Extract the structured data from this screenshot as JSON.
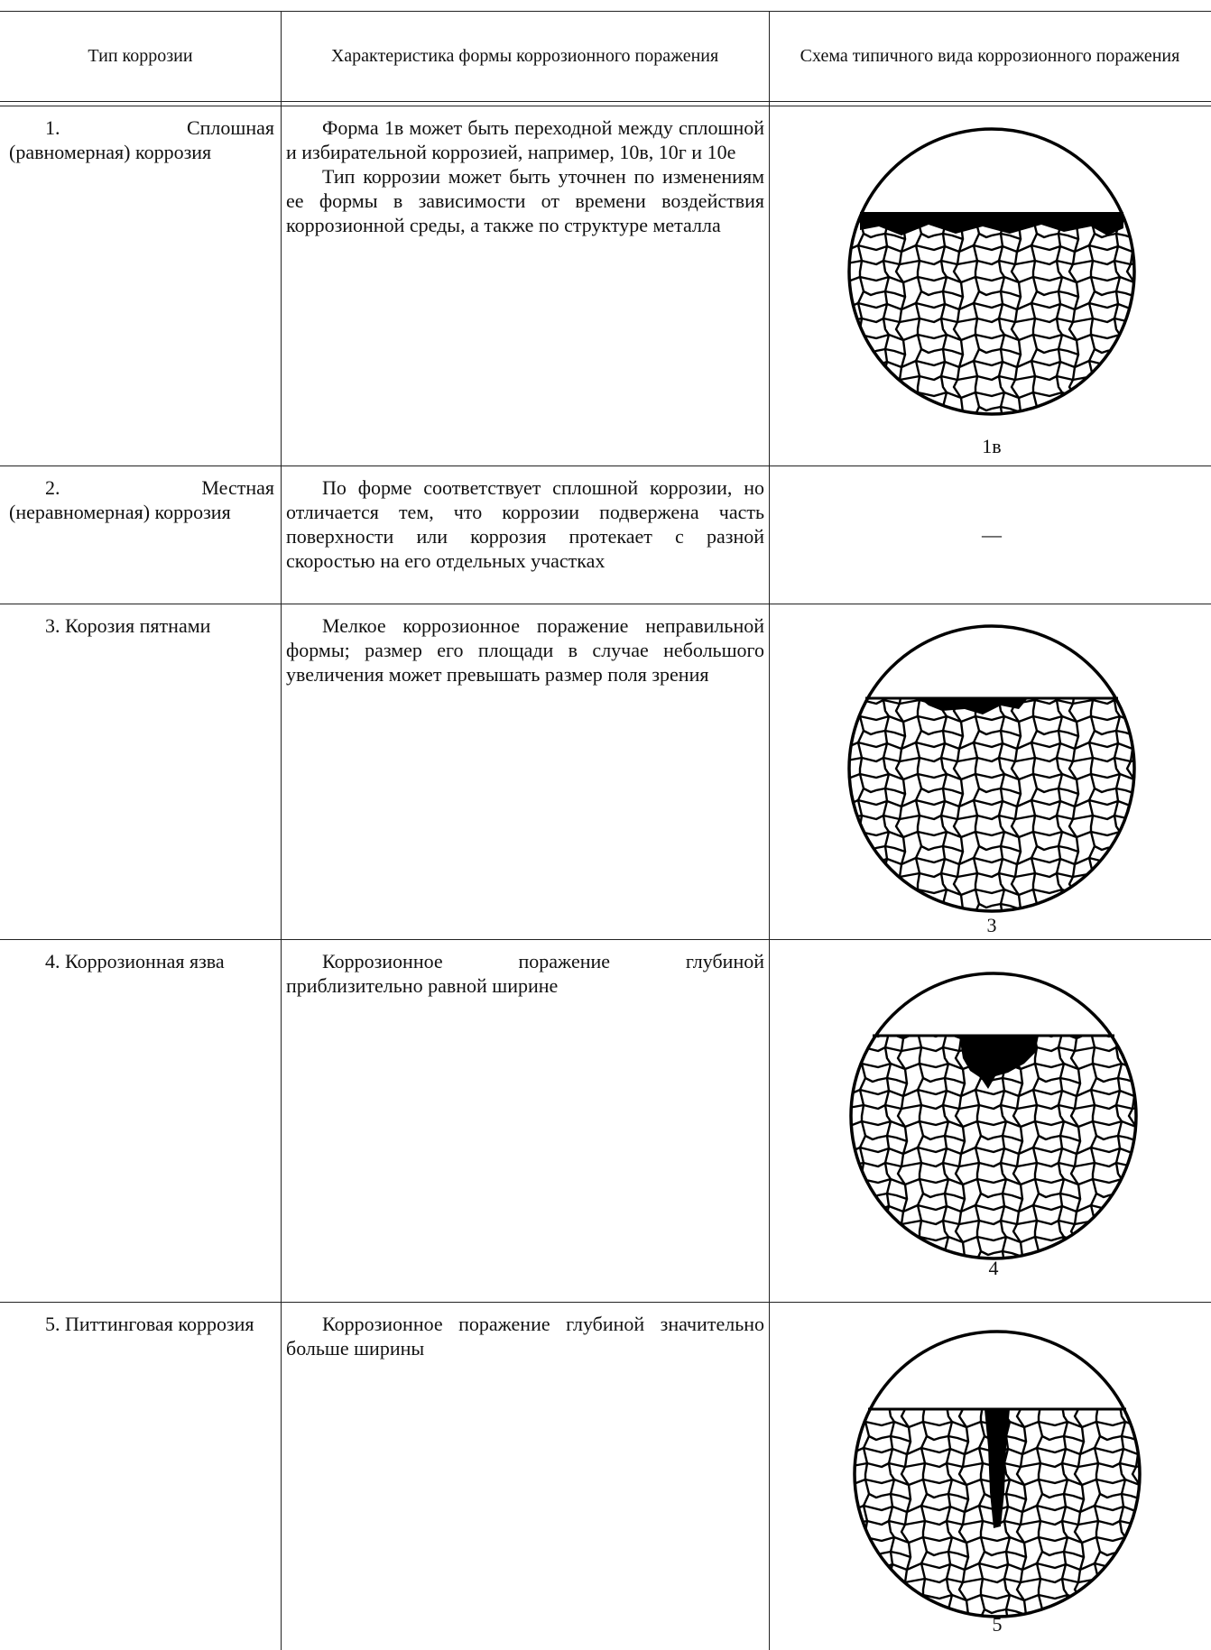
{
  "header": {
    "columns": [
      "Тип коррозии",
      "Характеристика формы коррозионного поражения",
      "Схема типичного вида коррозионного поражения"
    ]
  },
  "rows": [
    {
      "type": "1. Сплошная (равномерная) коррозия",
      "description": [
        "Форма 1в может быть переходной между сплошной и избирательной коррозией, например, 10в, 10г и 10е",
        "Тип коррозии может быть уточнен по изменениям ее формы в зависимости от времени воздействия коррозионной среды, а также по структуре металла"
      ],
      "caption": "1в"
    },
    {
      "type": "2. Местная (неравномерная) коррозия",
      "description": [
        "По форме соответствует сплошной коррозии, но отличается тем, что коррозии подвержена часть поверхности или коррозия протекает с разной скоростью на его отдельных участках"
      ],
      "caption": "—"
    },
    {
      "type": "3. Корозия пятнами",
      "description": [
        "Мелкое коррозионное поражение неправильной формы; размер его площади в случае небольшого увеличения может превышать размер поля зрения"
      ],
      "caption": "3"
    },
    {
      "type": "4. Коррозионная язва",
      "description": [
        "Коррозионное поражение глубиной приблизительно равной ширине"
      ],
      "caption": "4"
    },
    {
      "type": "5. Питтинговая коррозия",
      "description": [
        "Коррозионное поражение глубиной значительно больше ширины"
      ],
      "caption": "5"
    }
  ]
}
